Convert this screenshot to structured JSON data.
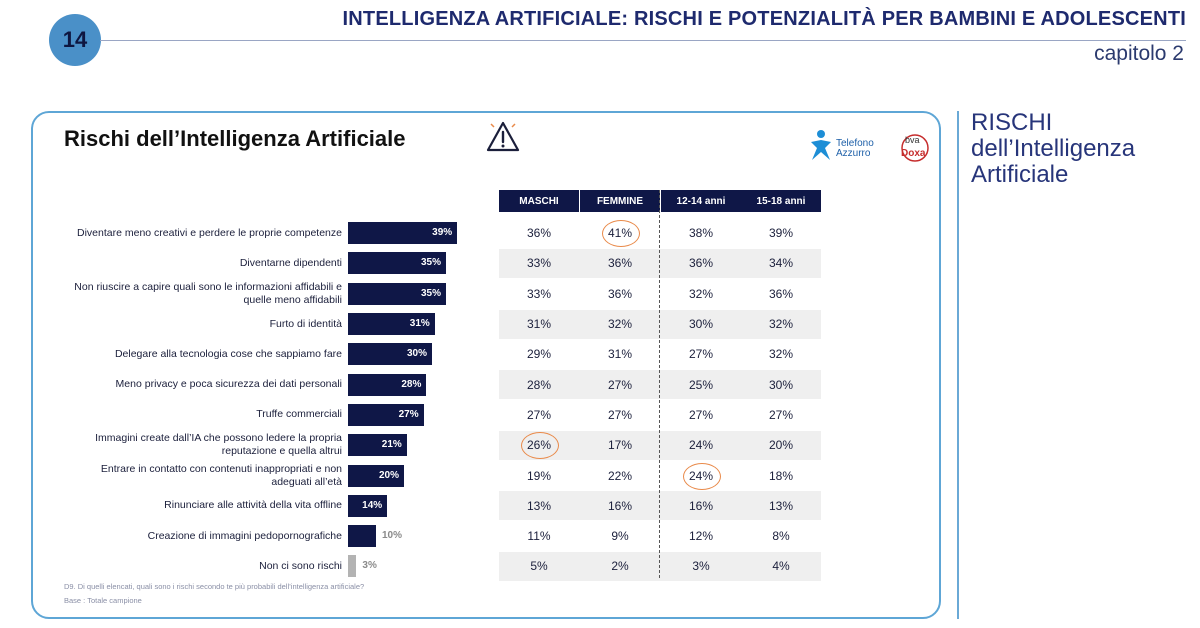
{
  "header": {
    "page_number": "14",
    "title": "INTELLIGENZA ARTIFICIALE: RISCHI E POTENZIALITÀ PER BAMBINI E ADOLESCENTI",
    "chapter": "capitolo 2"
  },
  "panel": {
    "title": "Rischi dell’Intelligenza Artificiale",
    "icon": "warning-triangle-icon",
    "logos": {
      "telefono_line1": "Telefono",
      "telefono_line2": "Azzurro",
      "bva": "bva",
      "doxa": "Doxa"
    }
  },
  "side_title": [
    "RISCHI",
    "dell’Intelligenza",
    "Artificiale"
  ],
  "columns": [
    "MASCHI",
    "FEMMINE",
    "12-14 anni",
    "15-18 anni"
  ],
  "rows": [
    {
      "label": [
        "Diventare meno creativi e perdere le proprie competenze"
      ],
      "total": "39%",
      "cells": [
        "36%",
        "41%",
        "38%",
        "39%"
      ]
    },
    {
      "label": [
        "Diventarne dipendenti"
      ],
      "total": "35%",
      "cells": [
        "33%",
        "36%",
        "36%",
        "34%"
      ]
    },
    {
      "label": [
        "Non riuscire a capire quali sono le informazioni affidabili e",
        "quelle meno affidabili"
      ],
      "total": "35%",
      "cells": [
        "33%",
        "36%",
        "32%",
        "36%"
      ]
    },
    {
      "label": [
        "Furto di identità"
      ],
      "total": "31%",
      "cells": [
        "31%",
        "32%",
        "30%",
        "32%"
      ]
    },
    {
      "label": [
        "Delegare alla tecnologia cose che sappiamo fare"
      ],
      "total": "30%",
      "cells": [
        "29%",
        "31%",
        "27%",
        "32%"
      ]
    },
    {
      "label": [
        "Meno privacy e poca sicurezza dei dati personali"
      ],
      "total": "28%",
      "cells": [
        "28%",
        "27%",
        "25%",
        "30%"
      ]
    },
    {
      "label": [
        "Truffe commerciali"
      ],
      "total": "27%",
      "cells": [
        "27%",
        "27%",
        "27%",
        "27%"
      ]
    },
    {
      "label": [
        "Immagini create dall’IA che possono ledere la propria",
        "reputazione e quella altrui"
      ],
      "total": "21%",
      "cells": [
        "26%",
        "17%",
        "24%",
        "20%"
      ]
    },
    {
      "label": [
        "Entrare in contatto con contenuti inappropriati e non",
        "adeguati all’età"
      ],
      "total": "20%",
      "cells": [
        "19%",
        "22%",
        "24%",
        "18%"
      ]
    },
    {
      "label": [
        "Rinunciare alle attività della vita offline"
      ],
      "total": "14%",
      "cells": [
        "13%",
        "16%",
        "16%",
        "13%"
      ]
    },
    {
      "label": [
        "Creazione di immagini pedopornografiche"
      ],
      "total": "10%",
      "cells": [
        "11%",
        "9%",
        "12%",
        "8%"
      ]
    },
    {
      "label": [
        "Non ci sono rischi"
      ],
      "total": "3%",
      "cells": [
        "5%",
        "2%",
        "3%",
        "4%"
      ]
    }
  ],
  "highlighted_cells": [
    [
      0,
      1
    ],
    [
      7,
      0
    ],
    [
      8,
      2
    ]
  ],
  "footnote": {
    "question": "D9. Di quelli elencati, quali sono i rischi secondo te più probabili dell’intelligenza artificiale?",
    "base": "Base : Totale campione"
  },
  "chart_data": {
    "type": "bar",
    "orientation": "horizontal",
    "categories": [
      "Diventare meno creativi e perdere le proprie competenze",
      "Diventarne dipendenti",
      "Non riuscire a capire quali sono le informazioni affidabili e quelle meno affidabili",
      "Furto di identità",
      "Delegare alla tecnologia cose che sappiamo fare",
      "Meno privacy e poca sicurezza dei dati personali",
      "Truffe commerciali",
      "Immagini create dall’IA che possono ledere la propria reputazione e quella altrui",
      "Entrare in contatto con contenuti inappropriati e non adeguati all’età",
      "Rinunciare alle attività della vita offline",
      "Creazione di immagini pedopornografiche",
      "Non ci sono rischi"
    ],
    "values": [
      39,
      35,
      35,
      31,
      30,
      28,
      27,
      21,
      20,
      14,
      10,
      3
    ],
    "colors": {
      "bar": "#0f1747",
      "bar_no_risk": "#b3b3b3",
      "highlight": "#e98a4a"
    }
  }
}
